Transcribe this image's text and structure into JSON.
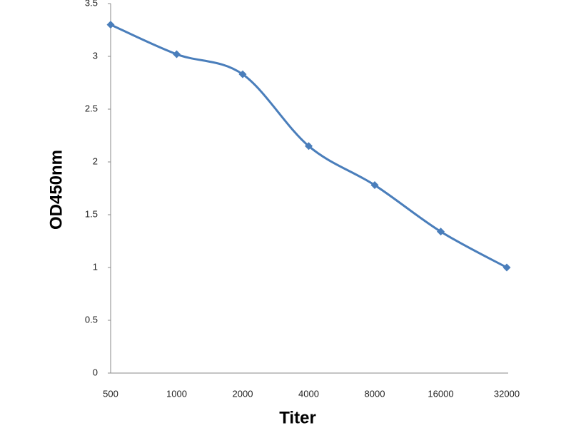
{
  "chart_data": {
    "type": "line",
    "x_label": "Titer",
    "y_label": "OD450nm",
    "categories": [
      "500",
      "1000",
      "2000",
      "4000",
      "8000",
      "16000",
      "32000"
    ],
    "series": [
      {
        "name": "OD450nm",
        "color": "#4a7ebb",
        "values": [
          3.3,
          3.02,
          2.83,
          2.15,
          1.78,
          1.34,
          1.0
        ]
      }
    ],
    "ylim": [
      0,
      3.5
    ],
    "yticks": [
      0,
      0.5,
      1,
      1.5,
      2,
      2.5,
      3,
      3.5
    ],
    "grid": false,
    "legend": false
  }
}
